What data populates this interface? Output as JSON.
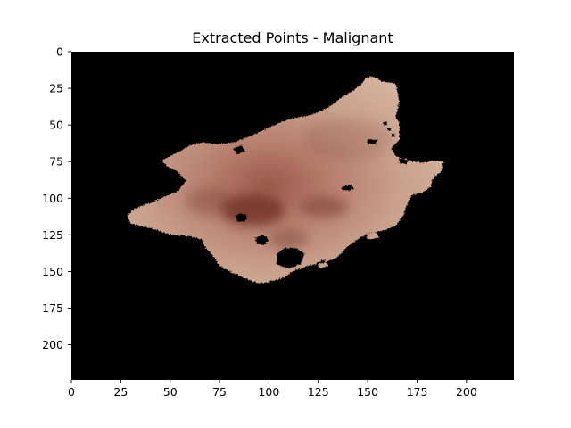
{
  "figure": {
    "title": "Extracted Points - Malignant",
    "image_extent": {
      "x": [
        0,
        224
      ],
      "y": [
        0,
        224
      ]
    },
    "x_ticks": [
      "0",
      "25",
      "50",
      "75",
      "100",
      "125",
      "150",
      "175",
      "200"
    ],
    "y_ticks": [
      "0",
      "25",
      "50",
      "75",
      "100",
      "125",
      "150",
      "175",
      "200"
    ],
    "image": {
      "content": "lesion-mask",
      "background_color": "#000000",
      "lesion_base_color": "#c9a08c",
      "lesion_dark_color": "#6b2f24",
      "lesion_outline": [
        [
          147,
          22
        ],
        [
          149,
          18
        ],
        [
          153,
          17
        ],
        [
          157,
          20
        ],
        [
          164,
          22
        ],
        [
          165,
          27
        ],
        [
          166,
          34
        ],
        [
          165,
          40
        ],
        [
          164,
          45
        ],
        [
          166,
          48
        ],
        [
          166,
          60
        ],
        [
          162,
          66
        ],
        [
          164,
          71
        ],
        [
          170,
          74
        ],
        [
          178,
          76
        ],
        [
          184,
          74
        ],
        [
          188,
          75
        ],
        [
          187,
          82
        ],
        [
          183,
          86
        ],
        [
          182,
          92
        ],
        [
          178,
          96
        ],
        [
          172,
          98
        ],
        [
          170,
          104
        ],
        [
          168,
          112
        ],
        [
          164,
          119
        ],
        [
          158,
          122
        ],
        [
          150,
          124
        ],
        [
          145,
          128
        ],
        [
          139,
          134
        ],
        [
          135,
          140
        ],
        [
          128,
          144
        ],
        [
          120,
          146
        ],
        [
          112,
          150
        ],
        [
          108,
          154
        ],
        [
          103,
          156
        ],
        [
          97,
          158
        ],
        [
          92,
          157
        ],
        [
          87,
          154
        ],
        [
          80,
          150
        ],
        [
          75,
          146
        ],
        [
          72,
          140
        ],
        [
          68,
          134
        ],
        [
          66,
          128
        ],
        [
          60,
          126
        ],
        [
          50,
          125
        ],
        [
          42,
          121
        ],
        [
          35,
          119
        ],
        [
          30,
          117
        ],
        [
          28,
          112
        ],
        [
          32,
          107
        ],
        [
          40,
          103
        ],
        [
          47,
          99
        ],
        [
          54,
          95
        ],
        [
          58,
          88
        ],
        [
          54,
          82
        ],
        [
          48,
          78
        ],
        [
          46,
          74
        ],
        [
          52,
          70
        ],
        [
          60,
          64
        ],
        [
          66,
          62
        ],
        [
          74,
          63
        ],
        [
          82,
          62
        ],
        [
          90,
          58
        ],
        [
          98,
          53
        ],
        [
          106,
          48
        ],
        [
          114,
          45
        ],
        [
          122,
          43
        ],
        [
          130,
          38
        ],
        [
          136,
          32
        ],
        [
          142,
          27
        ]
      ],
      "lesion_holes": [
        [
          [
            83,
            112
          ],
          [
            86,
            110
          ],
          [
            89,
            112
          ],
          [
            88,
            116
          ],
          [
            84,
            116
          ]
        ],
        [
          [
            104,
            138
          ],
          [
            108,
            134
          ],
          [
            114,
            134
          ],
          [
            118,
            138
          ],
          [
            116,
            145
          ],
          [
            110,
            148
          ],
          [
            104,
            145
          ]
        ],
        [
          [
            93,
            127
          ],
          [
            97,
            125
          ],
          [
            100,
            128
          ],
          [
            98,
            132
          ],
          [
            94,
            131
          ]
        ],
        [
          [
            124,
            144
          ],
          [
            128,
            142
          ],
          [
            130,
            146
          ],
          [
            126,
            148
          ]
        ],
        [
          [
            82,
            66
          ],
          [
            86,
            64
          ],
          [
            88,
            68
          ],
          [
            84,
            70
          ]
        ],
        [
          [
            137,
            92
          ],
          [
            142,
            91
          ],
          [
            141,
            95
          ],
          [
            137,
            94
          ]
        ],
        [
          [
            150,
            60
          ],
          [
            155,
            60
          ],
          [
            154,
            63
          ],
          [
            150,
            63
          ]
        ],
        [
          [
            166,
            73
          ],
          [
            170,
            73
          ],
          [
            170,
            77
          ],
          [
            166,
            76
          ]
        ],
        [
          [
            149,
            124
          ],
          [
            154,
            123
          ],
          [
            156,
            127
          ],
          [
            150,
            128
          ]
        ]
      ],
      "lesion_gaps": [
        [
          [
            164,
            40
          ],
          [
            170,
            40
          ],
          [
            170,
            58
          ],
          [
            164,
            58
          ]
        ]
      ]
    }
  }
}
